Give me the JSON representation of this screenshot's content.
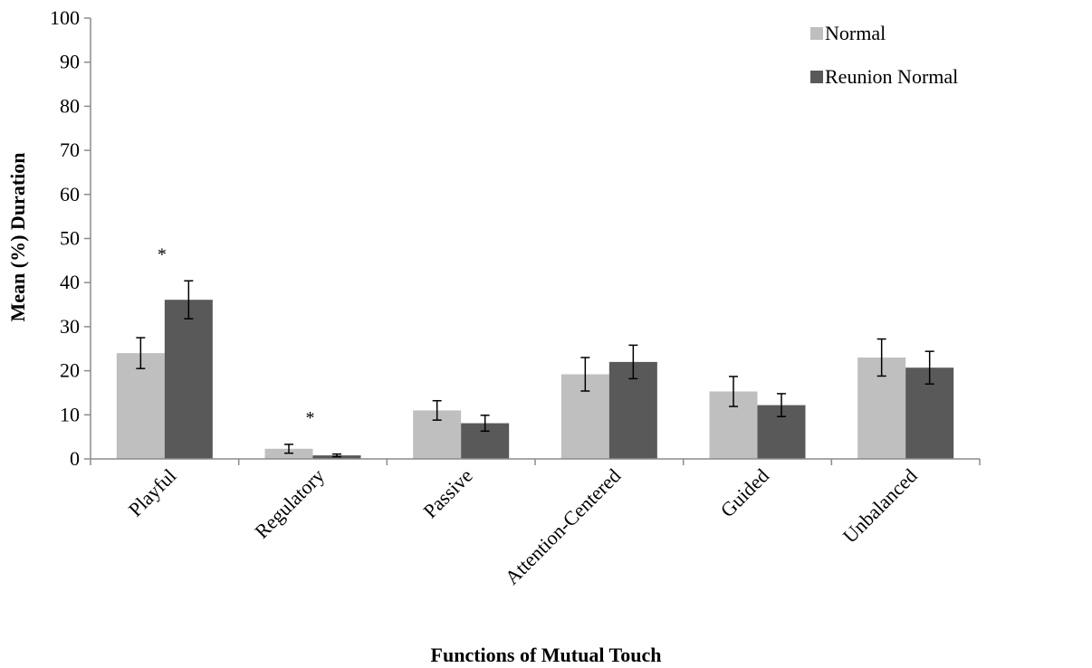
{
  "chart_data": {
    "type": "bar",
    "title": "",
    "xlabel": "Functions of Mutual Touch",
    "ylabel": "Mean (%) Duration",
    "ylim": [
      0,
      100
    ],
    "yticks": [
      0,
      10,
      20,
      30,
      40,
      50,
      60,
      70,
      80,
      90,
      100
    ],
    "categories": [
      "Playful",
      "Regulatory",
      "Passive",
      "Attention-Centered",
      "Guided",
      "Unbalanced"
    ],
    "series": [
      {
        "name": "Normal",
        "color": "#bfbfbf",
        "values": [
          24.0,
          2.3,
          11.0,
          19.2,
          15.3,
          23.0
        ],
        "error": [
          3.5,
          1.0,
          2.2,
          3.8,
          3.4,
          4.2
        ]
      },
      {
        "name": "Reunion Normal",
        "color": "#595959",
        "values": [
          36.1,
          0.8,
          8.1,
          22.0,
          12.2,
          20.7
        ],
        "error": [
          4.3,
          0.3,
          1.8,
          3.8,
          2.6,
          3.7
        ]
      }
    ],
    "significance": [
      {
        "category": "Playful",
        "label": "*"
      },
      {
        "category": "Regulatory",
        "label": "*"
      }
    ],
    "legend": "top-right",
    "grid": false
  }
}
